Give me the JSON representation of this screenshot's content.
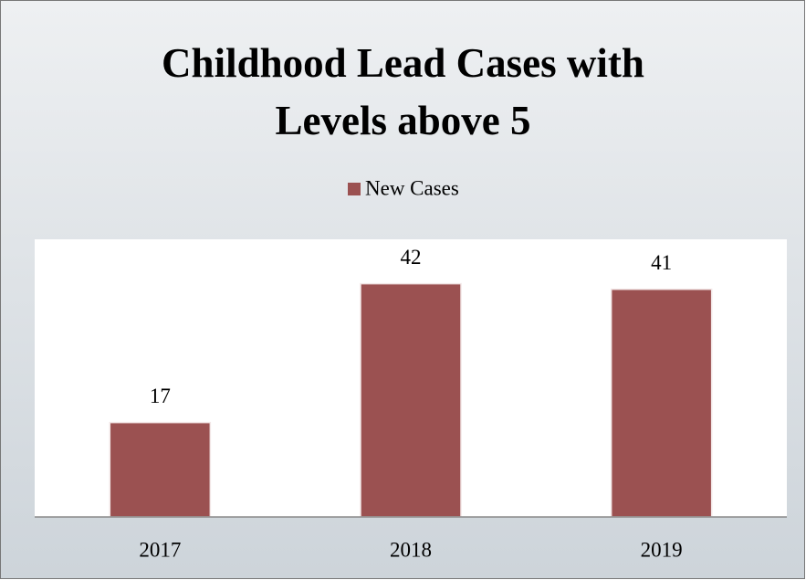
{
  "chart_data": {
    "type": "bar",
    "title": "Childhood Lead Cases with Levels above 5",
    "categories": [
      "2017",
      "2018",
      "2019"
    ],
    "series": [
      {
        "name": "New Cases",
        "color": "#9b5151",
        "values": [
          17,
          42,
          41
        ]
      }
    ],
    "ylim": [
      0,
      50
    ],
    "legend": "top"
  }
}
